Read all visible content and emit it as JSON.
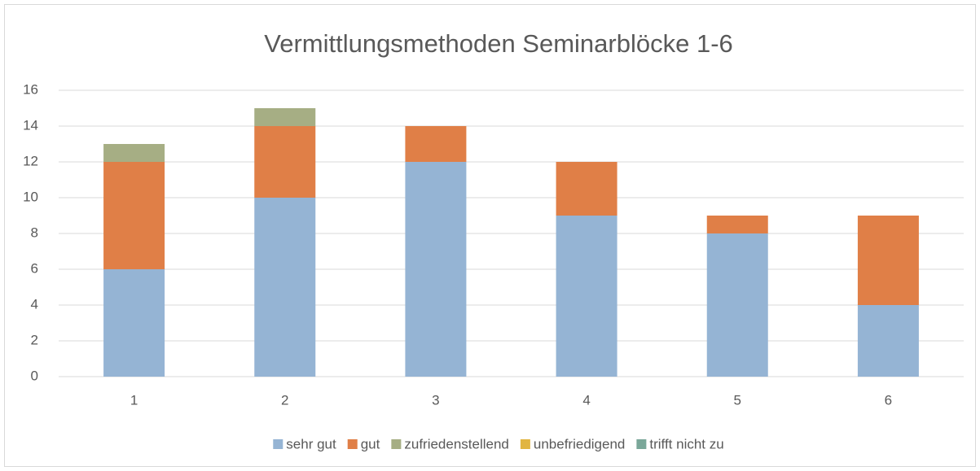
{
  "chart_data": {
    "type": "stacked_bar",
    "title": "Vermittlungsmethoden Seminarblöcke 1-6",
    "categories": [
      "1",
      "2",
      "3",
      "4",
      "5",
      "6"
    ],
    "series": [
      {
        "name": "sehr gut",
        "color": "#95b4d4",
        "values": [
          6,
          10,
          12,
          9,
          8,
          4
        ]
      },
      {
        "name": "gut",
        "color": "#e07f47",
        "values": [
          6,
          4,
          2,
          3,
          1,
          5
        ]
      },
      {
        "name": "zufriedenstellend",
        "color": "#a6ae84",
        "values": [
          1,
          1,
          0,
          0,
          0,
          0
        ]
      },
      {
        "name": "unbefriedigend",
        "color": "#e1b541",
        "values": [
          0,
          0,
          0,
          0,
          0,
          0
        ]
      },
      {
        "name": "trifft nicht zu",
        "color": "#7aa799",
        "values": [
          0,
          0,
          0,
          0,
          0,
          0
        ]
      }
    ],
    "ylim": [
      0,
      16
    ],
    "yticks": [
      0,
      2,
      4,
      6,
      8,
      10,
      12,
      14,
      16
    ],
    "grid": true,
    "legend": "bottom"
  }
}
